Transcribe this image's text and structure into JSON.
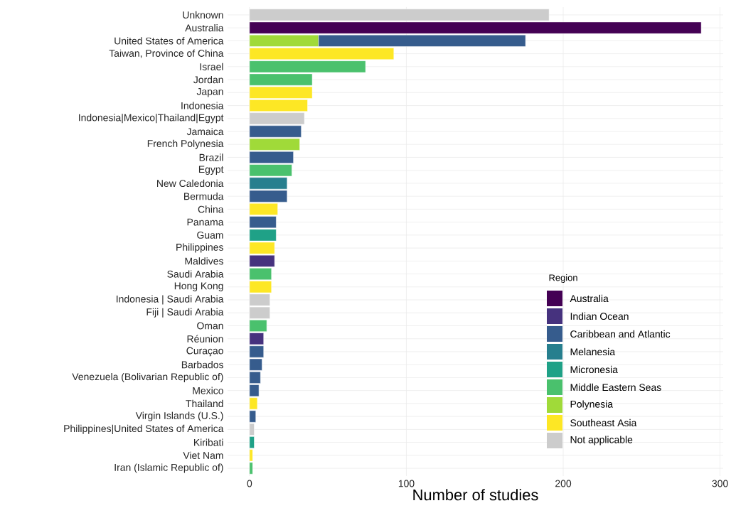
{
  "chart_data": {
    "type": "bar",
    "orientation": "horizontal",
    "stacked": true,
    "xlabel": "Number of studies",
    "legend_title": "Region",
    "legend": "bottom right",
    "grid": true,
    "categories": [
      "Unknown",
      "Australia",
      "United States of America",
      "Taiwan, Province of China",
      "Israel",
      "Jordan",
      "Japan",
      "Indonesia",
      "Indonesia|Mexico|Thailand|Egypt",
      "Jamaica",
      "French Polynesia",
      "Brazil",
      "Egypt",
      "New Caledonia",
      "Bermuda",
      "China",
      "Panama",
      "Guam",
      "Philippines",
      "Maldives",
      "Saudi Arabia",
      "Hong Kong",
      "Indonesia | Saudi Arabia",
      "Fiji | Saudi Arabia",
      "Oman",
      "Réunion",
      "Curaçao",
      "Barbados",
      "Venezuela (Bolivarian Republic of)",
      "Mexico",
      "Thailand",
      "Virgin Islands (U.S.)",
      "Philippines|United States of America",
      "Kiribati",
      "Viet Nam",
      "Iran (Islamic Republic of)"
    ],
    "xlim": [
      -14,
      302
    ],
    "xticks": [
      0,
      100,
      200,
      300
    ],
    "series": [
      {
        "name": "Not applicable",
        "color": "#cccccc",
        "values": [
          191,
          null,
          null,
          null,
          null,
          null,
          null,
          null,
          35,
          null,
          null,
          null,
          null,
          null,
          null,
          null,
          null,
          null,
          null,
          null,
          null,
          null,
          13,
          13,
          null,
          null,
          null,
          null,
          null,
          null,
          null,
          null,
          3,
          null,
          null,
          null
        ]
      },
      {
        "name": "Southeast Asia",
        "color": "#fde725",
        "values": [
          null,
          null,
          null,
          92,
          null,
          null,
          40,
          37,
          null,
          null,
          null,
          null,
          null,
          null,
          null,
          18,
          null,
          null,
          16,
          null,
          null,
          14,
          null,
          null,
          null,
          null,
          null,
          null,
          null,
          null,
          5,
          null,
          null,
          null,
          2,
          null
        ]
      },
      {
        "name": "Polynesia",
        "color": "#a0da39",
        "values": [
          null,
          null,
          44,
          null,
          null,
          null,
          null,
          null,
          null,
          null,
          32,
          null,
          null,
          null,
          null,
          null,
          null,
          null,
          null,
          null,
          null,
          null,
          null,
          null,
          null,
          null,
          null,
          null,
          null,
          null,
          null,
          null,
          null,
          null,
          null,
          null
        ]
      },
      {
        "name": "Middle Eastern Seas",
        "color": "#4ac16d",
        "values": [
          null,
          null,
          null,
          null,
          74,
          40,
          null,
          null,
          null,
          null,
          null,
          null,
          27,
          null,
          null,
          null,
          null,
          null,
          null,
          null,
          14,
          null,
          null,
          null,
          11,
          null,
          null,
          null,
          null,
          null,
          null,
          null,
          null,
          null,
          null,
          2
        ]
      },
      {
        "name": "Micronesia",
        "color": "#1fa187",
        "values": [
          null,
          null,
          null,
          null,
          null,
          null,
          null,
          null,
          null,
          null,
          null,
          null,
          null,
          null,
          null,
          null,
          null,
          17,
          null,
          null,
          null,
          null,
          null,
          null,
          null,
          null,
          null,
          null,
          null,
          null,
          null,
          null,
          null,
          3,
          null,
          null
        ]
      },
      {
        "name": "Melanesia",
        "color": "#277f8e",
        "values": [
          null,
          null,
          null,
          null,
          null,
          null,
          null,
          null,
          null,
          null,
          null,
          null,
          null,
          24,
          null,
          null,
          null,
          null,
          null,
          null,
          null,
          null,
          null,
          null,
          null,
          null,
          null,
          null,
          null,
          null,
          null,
          null,
          null,
          null,
          null,
          null
        ]
      },
      {
        "name": "Caribbean and Atlantic",
        "color": "#365c8d",
        "values": [
          null,
          null,
          132,
          null,
          null,
          null,
          null,
          null,
          null,
          33,
          null,
          28,
          null,
          null,
          24,
          null,
          17,
          null,
          null,
          null,
          null,
          null,
          null,
          null,
          null,
          null,
          9,
          8,
          7,
          6,
          null,
          4,
          null,
          null,
          null,
          null
        ]
      },
      {
        "name": "Indian Ocean",
        "color": "#46327e",
        "values": [
          null,
          null,
          null,
          null,
          null,
          null,
          null,
          null,
          null,
          null,
          null,
          null,
          null,
          null,
          null,
          null,
          null,
          null,
          null,
          16,
          null,
          null,
          null,
          null,
          null,
          9,
          null,
          null,
          null,
          null,
          null,
          null,
          null,
          null,
          null,
          null
        ]
      },
      {
        "name": "Australia",
        "color": "#440154",
        "values": [
          null,
          288,
          null,
          null,
          null,
          null,
          null,
          null,
          null,
          null,
          null,
          null,
          null,
          null,
          null,
          null,
          null,
          null,
          null,
          null,
          null,
          null,
          null,
          null,
          null,
          null,
          null,
          null,
          null,
          null,
          null,
          null,
          null,
          null,
          null,
          null
        ]
      }
    ]
  }
}
